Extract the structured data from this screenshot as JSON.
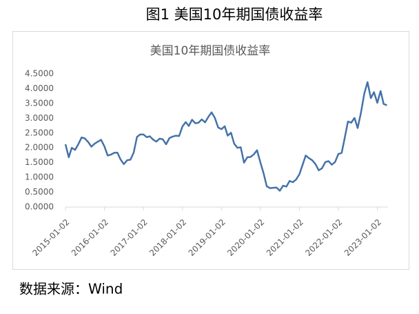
{
  "caption": "图1 美国10年期国债收益率",
  "source": "数据来源：Wind",
  "chart_data": {
    "type": "line",
    "title": "美国10年期国债收益率",
    "x": [
      "2015-01-02",
      "2015-02-02",
      "2015-03-02",
      "2015-04-02",
      "2015-05-02",
      "2015-06-02",
      "2015-07-02",
      "2015-08-02",
      "2015-09-02",
      "2015-10-02",
      "2015-11-02",
      "2015-12-02",
      "2016-01-02",
      "2016-02-02",
      "2016-03-02",
      "2016-04-02",
      "2016-05-02",
      "2016-06-02",
      "2016-07-02",
      "2016-08-02",
      "2016-09-02",
      "2016-10-02",
      "2016-11-02",
      "2016-12-02",
      "2017-01-02",
      "2017-02-02",
      "2017-03-02",
      "2017-04-02",
      "2017-05-02",
      "2017-06-02",
      "2017-07-02",
      "2017-08-02",
      "2017-09-02",
      "2017-10-02",
      "2017-11-02",
      "2017-12-02",
      "2018-01-02",
      "2018-02-02",
      "2018-03-02",
      "2018-04-02",
      "2018-05-02",
      "2018-06-02",
      "2018-07-02",
      "2018-08-02",
      "2018-09-02",
      "2018-10-02",
      "2018-11-02",
      "2018-12-02",
      "2019-01-02",
      "2019-02-02",
      "2019-03-02",
      "2019-04-02",
      "2019-05-02",
      "2019-06-02",
      "2019-07-02",
      "2019-08-02",
      "2019-09-02",
      "2019-10-02",
      "2019-11-02",
      "2019-12-02",
      "2020-01-02",
      "2020-02-02",
      "2020-03-02",
      "2020-04-02",
      "2020-05-02",
      "2020-06-02",
      "2020-07-02",
      "2020-08-02",
      "2020-09-02",
      "2020-10-02",
      "2020-11-02",
      "2020-12-02",
      "2021-01-02",
      "2021-02-02",
      "2021-03-02",
      "2021-04-02",
      "2021-05-02",
      "2021-06-02",
      "2021-07-02",
      "2021-08-02",
      "2021-09-02",
      "2021-10-02",
      "2021-11-02",
      "2021-12-02",
      "2022-01-02",
      "2022-02-02",
      "2022-03-02",
      "2022-04-02",
      "2022-05-02",
      "2022-06-02",
      "2022-07-02",
      "2022-08-02",
      "2022-09-02",
      "2022-10-02",
      "2022-11-02",
      "2022-12-02",
      "2023-01-02",
      "2023-02-02",
      "2023-03-02",
      "2023-04-02"
    ],
    "series": [
      {
        "name": "美国10年期国债收益率",
        "color": "#4472a8",
        "values": [
          2.12,
          1.68,
          2.0,
          1.93,
          2.12,
          2.35,
          2.32,
          2.2,
          2.04,
          2.14,
          2.21,
          2.27,
          2.05,
          1.74,
          1.77,
          1.83,
          1.84,
          1.6,
          1.45,
          1.58,
          1.6,
          1.84,
          2.37,
          2.45,
          2.45,
          2.36,
          2.39,
          2.28,
          2.21,
          2.31,
          2.29,
          2.12,
          2.33,
          2.38,
          2.41,
          2.4,
          2.72,
          2.87,
          2.74,
          2.95,
          2.83,
          2.85,
          2.96,
          2.86,
          3.05,
          3.2,
          3.01,
          2.69,
          2.63,
          2.73,
          2.41,
          2.51,
          2.14,
          2.0,
          2.02,
          1.5,
          1.68,
          1.69,
          1.78,
          1.92,
          1.51,
          1.13,
          0.7,
          0.64,
          0.65,
          0.66,
          0.55,
          0.72,
          0.69,
          0.88,
          0.84,
          0.93,
          1.11,
          1.44,
          1.74,
          1.65,
          1.58,
          1.45,
          1.24,
          1.31,
          1.52,
          1.55,
          1.43,
          1.52,
          1.79,
          1.83,
          2.32,
          2.89,
          2.85,
          3.01,
          2.67,
          3.19,
          3.83,
          4.22,
          3.68,
          3.88,
          3.52,
          3.92,
          3.48,
          3.44
        ]
      }
    ],
    "xlim": [
      "2015-01-02",
      "2023-04-12"
    ],
    "xticks": [
      "2015-01-02",
      "2016-01-02",
      "2017-01-02",
      "2018-01-02",
      "2019-01-02",
      "2020-01-02",
      "2021-01-02",
      "2022-01-02",
      "2023-01-02"
    ],
    "ylim": [
      0,
      4.5
    ],
    "yticks": [
      {
        "value": 0,
        "label": "0.0000"
      },
      {
        "value": 0.5,
        "label": "0.5000"
      },
      {
        "value": 1,
        "label": "1.0000"
      },
      {
        "value": 1.5,
        "label": "1.5000"
      },
      {
        "value": 2,
        "label": "2.0000"
      },
      {
        "value": 2.5,
        "label": "2.5000"
      },
      {
        "value": 3,
        "label": "3.0000"
      },
      {
        "value": 3.5,
        "label": "3.5000"
      },
      {
        "value": 4,
        "label": "4.0000"
      },
      {
        "value": 4.5,
        "label": "4.5000"
      }
    ]
  }
}
